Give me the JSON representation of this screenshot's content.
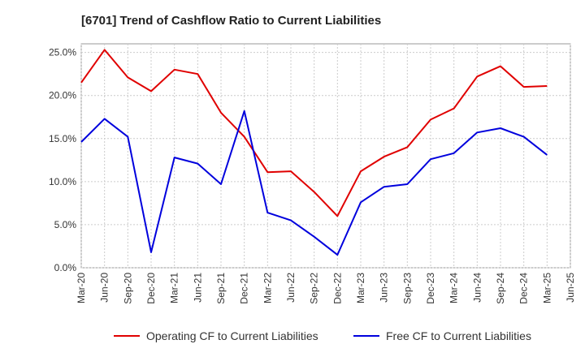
{
  "chart_data": {
    "type": "line",
    "title": "[6701]  Trend of Cashflow Ratio to Current Liabilities",
    "x": [
      "Mar-20",
      "Jun-20",
      "Sep-20",
      "Dec-20",
      "Mar-21",
      "Jun-21",
      "Sep-21",
      "Dec-21",
      "Mar-22",
      "Jun-22",
      "Sep-22",
      "Dec-22",
      "Mar-23",
      "Jun-23",
      "Sep-23",
      "Dec-23",
      "Mar-24",
      "Jun-24",
      "Sep-24",
      "Dec-24",
      "Mar-25"
    ],
    "x_ticks": [
      "Mar-20",
      "Jun-20",
      "Sep-20",
      "Dec-20",
      "Mar-21",
      "Jun-21",
      "Sep-21",
      "Dec-21",
      "Mar-22",
      "Jun-22",
      "Sep-22",
      "Dec-22",
      "Mar-23",
      "Jun-23",
      "Sep-23",
      "Dec-23",
      "Mar-24",
      "Jun-24",
      "Sep-24",
      "Dec-24",
      "Mar-25",
      "Jun-25"
    ],
    "y_ticks": [
      "0.0%",
      "5.0%",
      "10.0%",
      "15.0%",
      "20.0%",
      "25.0%"
    ],
    "ylim": [
      0,
      26
    ],
    "grid": true,
    "legend_position": "bottom",
    "series": [
      {
        "name": "Operating CF to Current Liabilities",
        "color": "#e00000",
        "values": [
          21.5,
          25.3,
          22.1,
          20.5,
          23.0,
          22.5,
          18.0,
          15.2,
          11.1,
          11.2,
          8.8,
          6.0,
          11.2,
          12.9,
          14.0,
          17.2,
          18.5,
          22.2,
          23.4,
          21.0,
          21.1
        ]
      },
      {
        "name": "Free CF to Current Liabilities",
        "color": "#0000dd",
        "values": [
          14.6,
          17.3,
          15.2,
          1.8,
          12.8,
          12.1,
          9.7,
          18.2,
          6.4,
          5.5,
          3.6,
          1.5,
          7.6,
          9.4,
          9.7,
          12.6,
          13.3,
          15.7,
          16.2,
          15.2,
          13.1
        ]
      }
    ]
  }
}
